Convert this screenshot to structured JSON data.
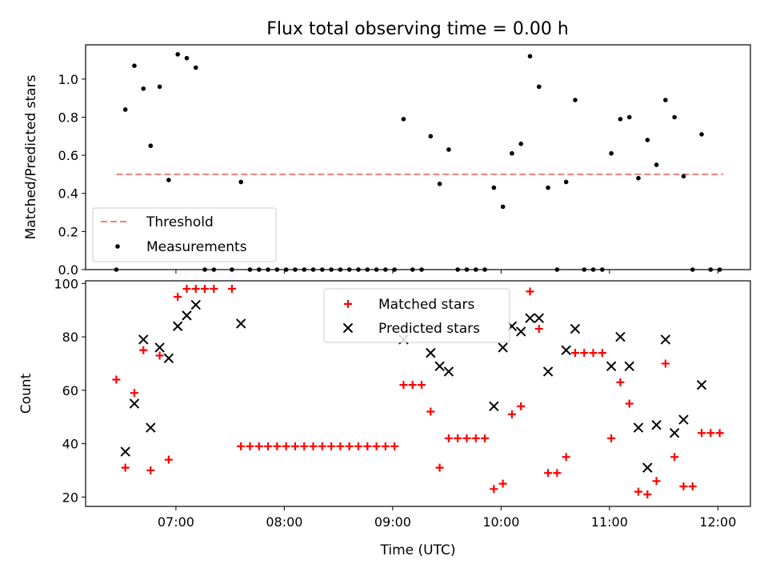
{
  "figure": {
    "title": "Flux total observing time = 0.00 h"
  },
  "chart_data": [
    {
      "type": "scatter",
      "ylabel": "Matched/Predicted stars",
      "ylim": [
        0,
        1.18
      ],
      "xlim": [
        "06:10",
        "12:18"
      ],
      "yticks": [
        0.0,
        0.2,
        0.4,
        0.6,
        0.8,
        1.0
      ],
      "ytick_labels": [
        "0.0",
        "0.2",
        "0.4",
        "0.6",
        "0.8",
        "1.0"
      ],
      "xticks": [
        "07:00",
        "08:00",
        "09:00",
        "10:00",
        "11:00",
        "12:00"
      ],
      "legend_position": "lower-left",
      "threshold": {
        "name": "Threshold",
        "y": 0.5,
        "x_start": "06:27",
        "x_end": "12:03",
        "color": "#f08080"
      },
      "series": [
        {
          "name": "Measurements",
          "color": "#000000",
          "marker": "dot",
          "points": [
            [
              "06:27",
              0.0
            ],
            [
              "06:32",
              0.84
            ],
            [
              "06:37",
              1.07
            ],
            [
              "06:42",
              0.95
            ],
            [
              "06:46",
              0.65
            ],
            [
              "06:51",
              0.96
            ],
            [
              "06:56",
              0.47
            ],
            [
              "07:01",
              1.13
            ],
            [
              "07:06",
              1.11
            ],
            [
              "07:11",
              1.06
            ],
            [
              "07:16",
              0.0
            ],
            [
              "07:21",
              0.0
            ],
            [
              "07:31",
              0.0
            ],
            [
              "07:36",
              0.46
            ],
            [
              "07:41",
              0.0
            ],
            [
              "07:46",
              0.0
            ],
            [
              "07:51",
              0.0
            ],
            [
              "07:56",
              0.0
            ],
            [
              "08:01",
              0.0
            ],
            [
              "08:06",
              0.0
            ],
            [
              "08:11",
              0.0
            ],
            [
              "08:16",
              0.0
            ],
            [
              "08:21",
              0.0
            ],
            [
              "08:26",
              0.0
            ],
            [
              "08:31",
              0.0
            ],
            [
              "08:36",
              0.0
            ],
            [
              "08:41",
              0.0
            ],
            [
              "08:46",
              0.0
            ],
            [
              "08:51",
              0.0
            ],
            [
              "08:56",
              0.0
            ],
            [
              "09:01",
              0.0
            ],
            [
              "09:06",
              0.79
            ],
            [
              "09:11",
              0.0
            ],
            [
              "09:16",
              0.0
            ],
            [
              "09:21",
              0.7
            ],
            [
              "09:26",
              0.45
            ],
            [
              "09:31",
              0.63
            ],
            [
              "09:36",
              0.0
            ],
            [
              "09:41",
              0.0
            ],
            [
              "09:46",
              0.0
            ],
            [
              "09:51",
              0.0
            ],
            [
              "09:56",
              0.43
            ],
            [
              "10:01",
              0.33
            ],
            [
              "10:06",
              0.61
            ],
            [
              "10:11",
              0.66
            ],
            [
              "10:16",
              1.12
            ],
            [
              "10:21",
              0.96
            ],
            [
              "10:26",
              0.43
            ],
            [
              "10:31",
              0.0
            ],
            [
              "10:36",
              0.46
            ],
            [
              "10:41",
              0.89
            ],
            [
              "10:46",
              0.0
            ],
            [
              "10:51",
              0.0
            ],
            [
              "10:56",
              0.0
            ],
            [
              "11:01",
              0.61
            ],
            [
              "11:06",
              0.79
            ],
            [
              "11:11",
              0.8
            ],
            [
              "11:16",
              0.48
            ],
            [
              "11:21",
              0.68
            ],
            [
              "11:26",
              0.55
            ],
            [
              "11:31",
              0.89
            ],
            [
              "11:36",
              0.8
            ],
            [
              "11:41",
              0.49
            ],
            [
              "11:46",
              0.0
            ],
            [
              "11:51",
              0.71
            ],
            [
              "11:56",
              0.0
            ],
            [
              "12:01",
              0.0
            ]
          ]
        }
      ]
    },
    {
      "type": "scatter",
      "xlabel": "Time (UTC)",
      "ylabel": "Count",
      "ylim": [
        16.5,
        101
      ],
      "xlim": [
        "06:10",
        "12:18"
      ],
      "yticks": [
        20,
        40,
        60,
        80,
        100
      ],
      "ytick_labels": [
        "20",
        "40",
        "60",
        "80",
        "100"
      ],
      "xticks": [
        "07:00",
        "08:00",
        "09:00",
        "10:00",
        "11:00",
        "12:00"
      ],
      "xtick_labels": [
        "07:00",
        "08:00",
        "09:00",
        "10:00",
        "11:00",
        "12:00"
      ],
      "legend_position": "upper-center",
      "series": [
        {
          "name": "Matched stars",
          "color": "#ff0000",
          "marker": "plus",
          "points": [
            [
              "06:27",
              64
            ],
            [
              "06:32",
              31
            ],
            [
              "06:37",
              59
            ],
            [
              "06:42",
              75
            ],
            [
              "06:46",
              30
            ],
            [
              "06:51",
              73
            ],
            [
              "06:56",
              34
            ],
            [
              "07:01",
              95
            ],
            [
              "07:06",
              98
            ],
            [
              "07:11",
              98
            ],
            [
              "07:16",
              98
            ],
            [
              "07:21",
              98
            ],
            [
              "07:31",
              98
            ],
            [
              "07:36",
              39
            ],
            [
              "07:41",
              39
            ],
            [
              "07:46",
              39
            ],
            [
              "07:51",
              39
            ],
            [
              "07:56",
              39
            ],
            [
              "08:01",
              39
            ],
            [
              "08:06",
              39
            ],
            [
              "08:11",
              39
            ],
            [
              "08:16",
              39
            ],
            [
              "08:21",
              39
            ],
            [
              "08:26",
              39
            ],
            [
              "08:31",
              39
            ],
            [
              "08:36",
              39
            ],
            [
              "08:41",
              39
            ],
            [
              "08:46",
              39
            ],
            [
              "08:51",
              39
            ],
            [
              "08:56",
              39
            ],
            [
              "09:01",
              39
            ],
            [
              "09:06",
              62
            ],
            [
              "09:11",
              62
            ],
            [
              "09:16",
              62
            ],
            [
              "09:21",
              52
            ],
            [
              "09:26",
              31
            ],
            [
              "09:31",
              42
            ],
            [
              "09:36",
              42
            ],
            [
              "09:41",
              42
            ],
            [
              "09:46",
              42
            ],
            [
              "09:51",
              42
            ],
            [
              "09:56",
              23
            ],
            [
              "10:01",
              25
            ],
            [
              "10:06",
              51
            ],
            [
              "10:11",
              54
            ],
            [
              "10:16",
              97
            ],
            [
              "10:21",
              83
            ],
            [
              "10:26",
              29
            ],
            [
              "10:31",
              29
            ],
            [
              "10:36",
              35
            ],
            [
              "10:41",
              74
            ],
            [
              "10:46",
              74
            ],
            [
              "10:51",
              74
            ],
            [
              "10:56",
              74
            ],
            [
              "11:01",
              42
            ],
            [
              "11:06",
              63
            ],
            [
              "11:11",
              55
            ],
            [
              "11:16",
              22
            ],
            [
              "11:21",
              21
            ],
            [
              "11:26",
              26
            ],
            [
              "11:31",
              70
            ],
            [
              "11:36",
              35
            ],
            [
              "11:41",
              24
            ],
            [
              "11:46",
              24
            ],
            [
              "11:51",
              44
            ],
            [
              "11:56",
              44
            ],
            [
              "12:01",
              44
            ]
          ]
        },
        {
          "name": "Predicted stars",
          "color": "#000000",
          "marker": "x",
          "points": [
            [
              "06:32",
              37
            ],
            [
              "06:37",
              55
            ],
            [
              "06:42",
              79
            ],
            [
              "06:46",
              46
            ],
            [
              "06:51",
              76
            ],
            [
              "06:56",
              72
            ],
            [
              "07:01",
              84
            ],
            [
              "07:06",
              88
            ],
            [
              "07:11",
              92
            ],
            [
              "07:36",
              85
            ],
            [
              "09:06",
              79
            ],
            [
              "09:21",
              74
            ],
            [
              "09:26",
              69
            ],
            [
              "09:31",
              67
            ],
            [
              "09:56",
              54
            ],
            [
              "10:01",
              76
            ],
            [
              "10:06",
              84
            ],
            [
              "10:11",
              82
            ],
            [
              "10:16",
              87
            ],
            [
              "10:21",
              87
            ],
            [
              "10:26",
              67
            ],
            [
              "10:36",
              75
            ],
            [
              "10:41",
              83
            ],
            [
              "11:01",
              69
            ],
            [
              "11:06",
              80
            ],
            [
              "11:11",
              69
            ],
            [
              "11:16",
              46
            ],
            [
              "11:21",
              31
            ],
            [
              "11:26",
              47
            ],
            [
              "11:31",
              79
            ],
            [
              "11:36",
              44
            ],
            [
              "11:41",
              49
            ],
            [
              "11:51",
              62
            ]
          ]
        }
      ]
    }
  ]
}
